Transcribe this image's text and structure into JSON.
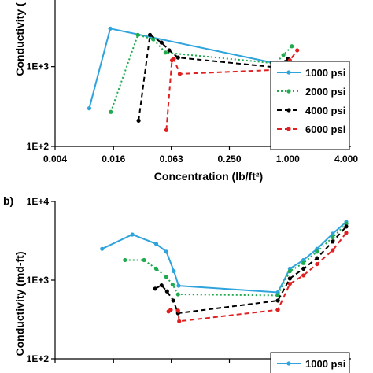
{
  "chart_data": [
    {
      "type": "line",
      "xlabel": "Concentration (lb/ft²)",
      "ylabel": "Conductivity (",
      "x_scale": "log2",
      "y_scale": "log10",
      "xlim": [
        0.004,
        4.0
      ],
      "ylim": [
        100,
        2000
      ],
      "x_ticks": [
        "0.004",
        "0.016",
        "0.063",
        "0.250",
        "1.000",
        "4.000"
      ],
      "y_ticks": [
        "1E+2",
        "1E+3"
      ],
      "legend_position": "bottom-right",
      "series": [
        {
          "name": "1000 psi",
          "color": "#2ea3dc",
          "dash": "solid",
          "x": [
            0.009,
            0.0148,
            0.75
          ],
          "y": [
            300,
            3000,
            1100
          ]
        },
        {
          "name": "2000 psi",
          "color": "#1faa4e",
          "dash": "dotted",
          "x": [
            0.015,
            0.0285,
            0.041,
            0.055,
            0.75,
            0.9,
            1.1
          ],
          "y": [
            270,
            2500,
            2200,
            1500,
            1100,
            1400,
            1800
          ]
        },
        {
          "name": "4000 psi",
          "color": "#000000",
          "dash": "dashed",
          "x": [
            0.029,
            0.038,
            0.05,
            0.06,
            0.074,
            0.75,
            1.0
          ],
          "y": [
            210,
            2500,
            2000,
            1600,
            1300,
            980,
            1250
          ]
        },
        {
          "name": "6000 psi",
          "color": "#e02020",
          "dash": "dashed",
          "x": [
            0.056,
            0.064,
            0.067,
            0.077,
            0.75,
            1.05,
            1.25
          ],
          "y": [
            160,
            1200,
            1250,
            810,
            910,
            1200,
            1600
          ]
        }
      ]
    },
    {
      "type": "line",
      "panel_label": "b)",
      "ylabel": "Conductivity (md-ft)",
      "x_scale": "log2",
      "y_scale": "log10",
      "xlim": [
        0.004,
        4.0
      ],
      "ylim": [
        100,
        10000
      ],
      "y_ticks": [
        "1E+2",
        "1E+3",
        "1E+4"
      ],
      "legend_position": "bottom-right",
      "series": [
        {
          "name": "1000 psi",
          "color": "#2ea3dc",
          "dash": "solid",
          "x": [
            0.0122,
            0.025,
            0.044,
            0.056,
            0.067,
            0.075,
            0.79,
            1.05,
            1.45,
            2.0,
            2.9,
            4.0
          ],
          "y": [
            2500,
            3800,
            2900,
            2300,
            1300,
            850,
            700,
            1400,
            1800,
            2500,
            3900,
            5500
          ]
        },
        {
          "name": "2000 psi",
          "color": "#1faa4e",
          "dash": "dotted",
          "x": [
            0.021,
            0.033,
            0.044,
            0.056,
            0.065,
            0.074,
            0.79,
            1.05,
            1.45,
            2.0,
            2.9,
            4.0
          ],
          "y": [
            1800,
            1800,
            1400,
            1100,
            880,
            660,
            640,
            1300,
            1650,
            2300,
            3500,
            5200
          ]
        },
        {
          "name": "4000 psi",
          "color": "#000000",
          "dash": "dashed",
          "x": [
            0.043,
            0.05,
            0.057,
            0.066,
            0.074,
            0.79,
            1.05,
            1.45,
            2.0,
            2.9,
            4.0
          ],
          "y": [
            780,
            860,
            720,
            550,
            380,
            550,
            1050,
            1400,
            1900,
            3100,
            4800
          ]
        },
        {
          "name": "6000 psi",
          "color": "#e02020",
          "dash": "dashed",
          "x": [
            0.059,
            0.062,
            0.074,
            0.076,
            0.79,
            1.05,
            1.45,
            2.0,
            2.9,
            4.0
          ],
          "y": [
            400,
            420,
            410,
            300,
            420,
            900,
            1150,
            1600,
            2400,
            4000
          ]
        }
      ]
    }
  ]
}
